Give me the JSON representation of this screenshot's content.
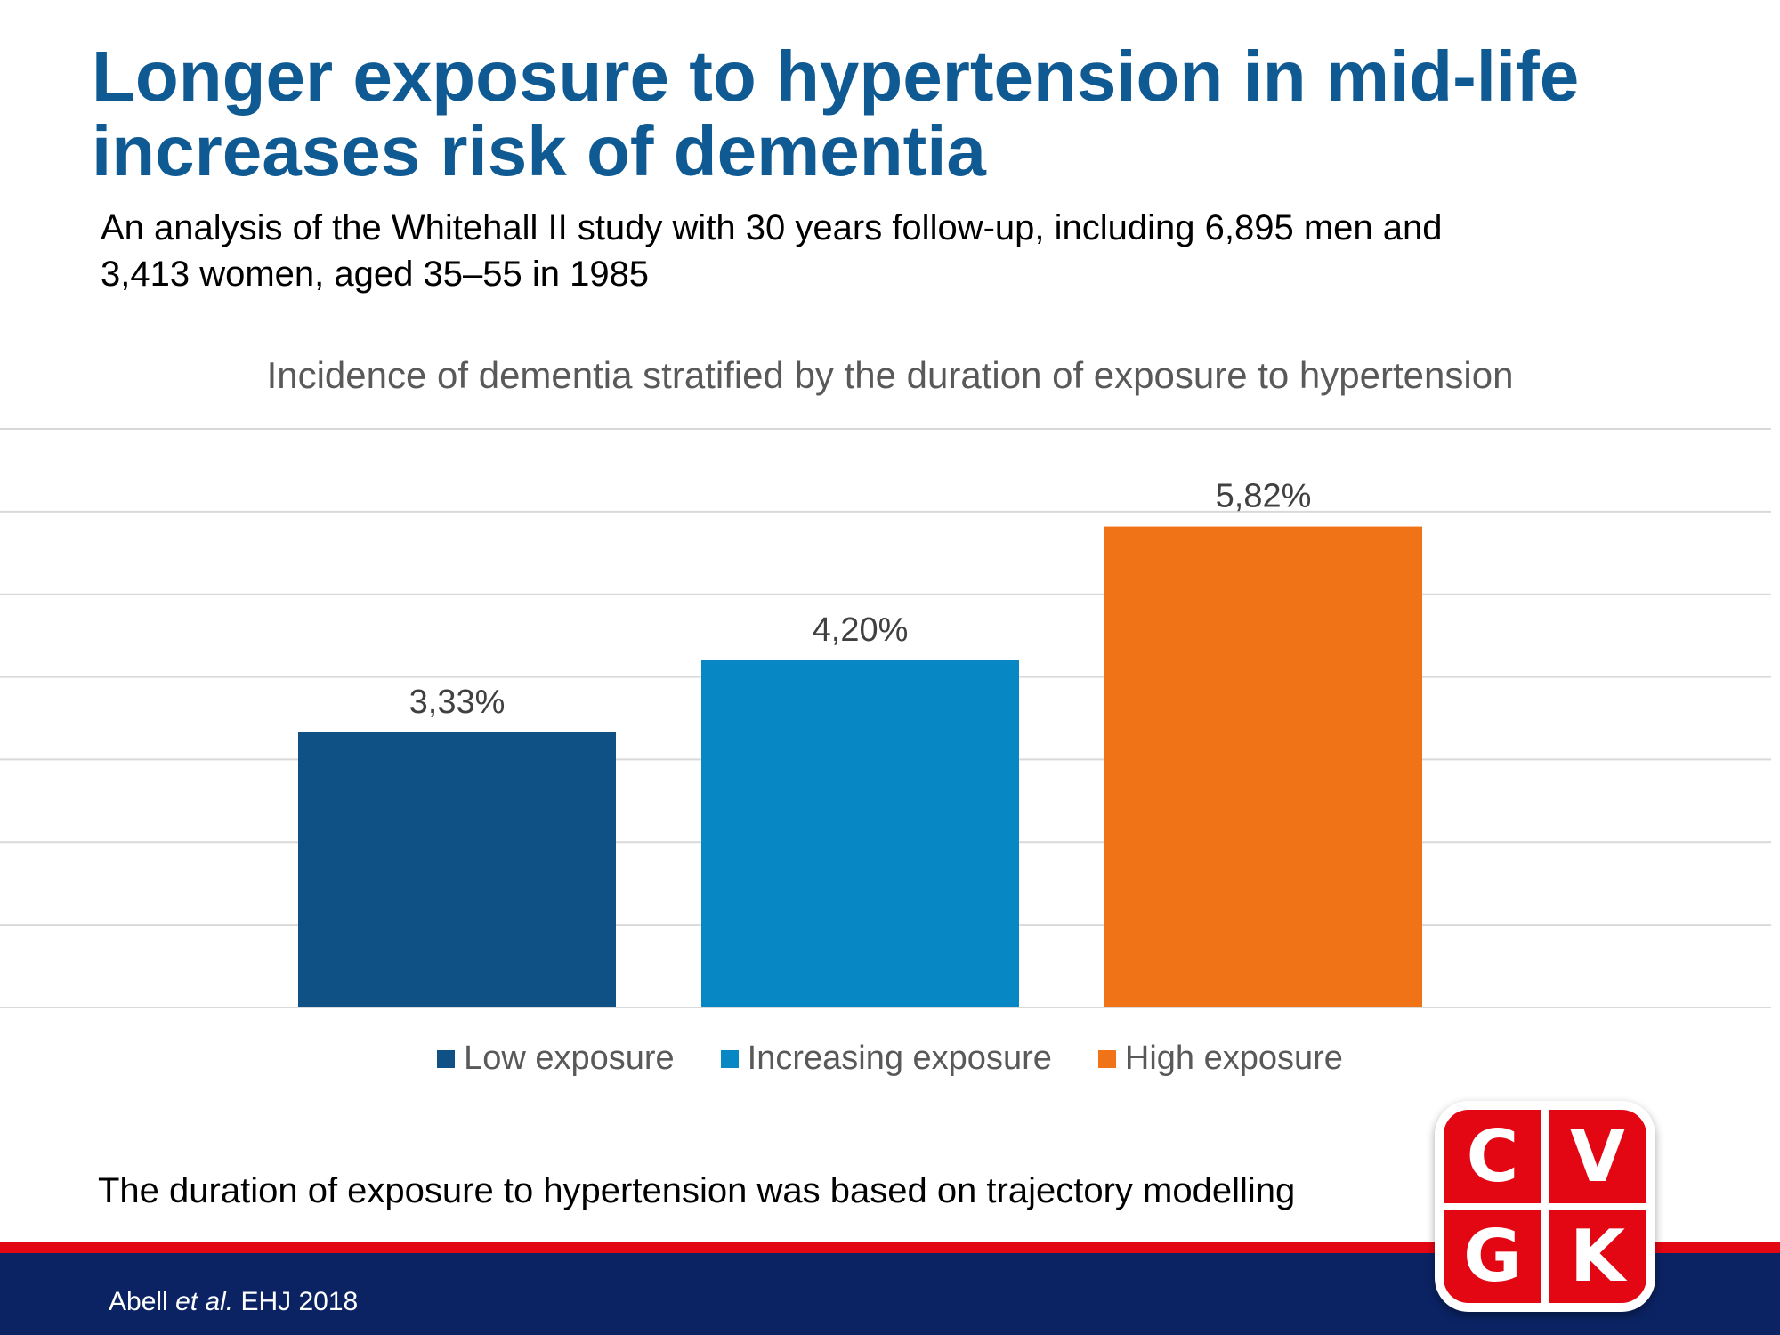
{
  "slide": {
    "title_lines": [
      "Longer exposure to hypertension in mid-life",
      "increases risk of dementia"
    ],
    "subtitle_lines": [
      "An analysis of the Whitehall II study with 30 years follow-up,  including 6,895 men and",
      "3,413 women,  aged 35–55 in 1985"
    ],
    "footnote": "The duration of exposure to hypertension was based on trajectory modelling",
    "citation": {
      "author": "Abell",
      "etal": "et al.",
      "journal": "EHJ 2018"
    },
    "logo_letters": [
      "C",
      "V",
      "G",
      "K"
    ],
    "colors": {
      "title": "#0f5a93",
      "stripe": "#e30613",
      "band": "#0b2363",
      "logo": "#e30613"
    }
  },
  "chart_data": {
    "type": "bar",
    "title": "Incidence  of dementia  stratified by the  duration  of exposure  to hypertension",
    "categories": [
      ""
    ],
    "series": [
      {
        "name": "Low exposure",
        "value": 3.33,
        "label": "3,33%",
        "color": "#0f5185"
      },
      {
        "name": "Increasing exposure",
        "value": 4.2,
        "label": "4,20%",
        "color": "#0787c3"
      },
      {
        "name": "High exposure",
        "value": 5.82,
        "label": "5,82%",
        "color": "#f07318"
      }
    ],
    "ylim": [
      0,
      7
    ],
    "gridlines": [
      0,
      1,
      2,
      3,
      4,
      5,
      6,
      7
    ],
    "grid": true,
    "legend": "bottom"
  }
}
